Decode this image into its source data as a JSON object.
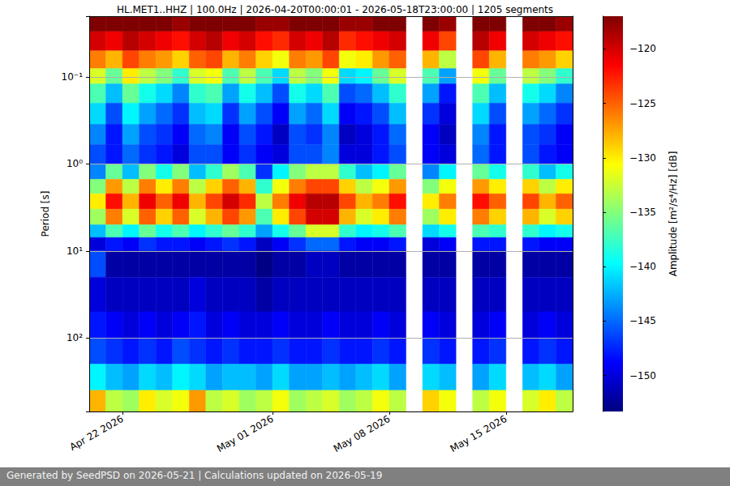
{
  "chart_data": {
    "type": "heatmap",
    "title": "HL.MET1..HHZ | 100.0Hz | 2026-04-20T00:00:01 - 2026-05-18T23:00:00 | 1205 segments",
    "ylabel": "Period [s]",
    "log": "y",
    "grid": true,
    "xlim": [
      "2026-04-20",
      "2026-05-19"
    ],
    "xticks": [
      {
        "value": "2026-04-22",
        "label": "Apr 22 2026"
      },
      {
        "value": "2026-05-01",
        "label": "May 01 2026"
      },
      {
        "value": "2026-05-08",
        "label": "May 08 2026"
      },
      {
        "value": "2026-05-15",
        "label": "May 15 2026"
      }
    ],
    "ylim": [
      0.02,
      700
    ],
    "yticks": [
      {
        "value": 0.1,
        "label": "10⁻¹"
      },
      {
        "value": 1,
        "label": "10⁰"
      },
      {
        "value": 10,
        "label": "10¹"
      },
      {
        "value": 100,
        "label": "10²"
      }
    ],
    "x_bins": [
      "2026-04-20",
      "2026-04-21",
      "2026-04-22",
      "2026-04-23",
      "2026-04-24",
      "2026-04-25",
      "2026-04-26",
      "2026-04-27",
      "2026-04-28",
      "2026-04-29",
      "2026-04-30",
      "2026-05-01",
      "2026-05-02",
      "2026-05-03",
      "2026-05-04",
      "2026-05-05",
      "2026-05-06",
      "2026-05-07",
      "2026-05-08",
      "2026-05-09",
      "2026-05-10",
      "2026-05-11",
      "2026-05-12",
      "2026-05-13",
      "2026-05-14",
      "2026-05-15",
      "2026-05-16",
      "2026-05-17",
      "2026-05-18",
      "2026-05-19"
    ],
    "y_bins": [
      0.02,
      0.03,
      0.05,
      0.08,
      0.12,
      0.2,
      0.35,
      0.6,
      1,
      1.5,
      2.2,
      3.3,
      5,
      7,
      10,
      20,
      50,
      100,
      200,
      400,
      700
    ],
    "cells": [
      [
        -117,
        -117,
        -117,
        -117,
        -117,
        -118,
        -117,
        -117,
        -117,
        -117,
        -118,
        -118,
        -117,
        -117,
        -117,
        -118,
        -118,
        -117,
        -117,
        null,
        -117,
        -118,
        null,
        -117,
        -117,
        null,
        -117,
        -117,
        -118
      ],
      [
        -120,
        -121,
        -119,
        -120,
        -121,
        -122,
        -120,
        -119,
        -121,
        -120,
        -122,
        -123,
        -120,
        -121,
        -119,
        -123,
        -122,
        -121,
        -120,
        null,
        -121,
        -124,
        null,
        -119,
        -121,
        null,
        -120,
        -121,
        -122
      ],
      [
        -126,
        -128,
        -124,
        -126,
        -127,
        -129,
        -125,
        -124,
        -128,
        -126,
        -129,
        -131,
        -126,
        -127,
        -124,
        -131,
        -130,
        -127,
        -125,
        null,
        -128,
        -133,
        null,
        -124,
        -128,
        null,
        -126,
        -127,
        -129
      ],
      [
        -132,
        -136,
        -130,
        -133,
        -135,
        -138,
        -132,
        -131,
        -137,
        -133,
        -137,
        -141,
        -133,
        -135,
        -131,
        -141,
        -140,
        -136,
        -132,
        null,
        -137,
        -143,
        null,
        -131,
        -136,
        null,
        -133,
        -135,
        -138
      ],
      [
        -137,
        -142,
        -136,
        -139,
        -141,
        -144,
        -138,
        -137,
        -143,
        -139,
        -142,
        -146,
        -139,
        -141,
        -137,
        -146,
        -145,
        -142,
        -138,
        null,
        -143,
        -148,
        null,
        -137,
        -142,
        null,
        -139,
        -141,
        -144
      ],
      [
        -141,
        -146,
        -140,
        -143,
        -145,
        -147,
        -142,
        -141,
        -147,
        -143,
        -146,
        -149,
        -143,
        -145,
        -141,
        -149,
        -148,
        -146,
        -142,
        null,
        -147,
        -150,
        null,
        -141,
        -146,
        null,
        -143,
        -145,
        -147
      ],
      [
        -144,
        -148,
        -143,
        -146,
        -147,
        -149,
        -145,
        -144,
        -149,
        -146,
        -148,
        -151,
        -146,
        -147,
        -144,
        -151,
        -150,
        -148,
        -145,
        null,
        -149,
        -151,
        null,
        -144,
        -148,
        null,
        -146,
        -147,
        -149
      ],
      [
        -146,
        -148,
        -145,
        -147,
        -148,
        -150,
        -146,
        -146,
        -149,
        -147,
        -149,
        -150,
        -146,
        -146,
        -144,
        -150,
        -150,
        -148,
        -146,
        null,
        -149,
        -150,
        null,
        -145,
        -148,
        null,
        -146,
        -148,
        -149
      ],
      [
        -144,
        -136,
        -142,
        -135,
        -139,
        -135,
        -142,
        -138,
        -134,
        -137,
        -147,
        -140,
        -135,
        -133,
        -133,
        -138,
        -142,
        -140,
        -136,
        null,
        -144,
        -140,
        null,
        -136,
        -139,
        null,
        -138,
        -142,
        -139
      ],
      [
        -135,
        -127,
        -133,
        -126,
        -130,
        -126,
        -133,
        -129,
        -125,
        -128,
        -138,
        -131,
        -126,
        -124,
        -124,
        -129,
        -133,
        -131,
        -127,
        null,
        -135,
        -131,
        null,
        -127,
        -130,
        null,
        -129,
        -133,
        -130
      ],
      [
        -130,
        -122,
        -128,
        -121,
        -125,
        -121,
        -128,
        -124,
        -120,
        -123,
        -133,
        -126,
        -121,
        -119,
        -119,
        -124,
        -128,
        -126,
        -122,
        null,
        -130,
        -126,
        null,
        -122,
        -125,
        null,
        -124,
        -128,
        -125
      ],
      [
        -134,
        -126,
        -132,
        -125,
        -129,
        -125,
        -132,
        -128,
        -124,
        -127,
        -137,
        -130,
        -124,
        -120,
        -120,
        -128,
        -132,
        -130,
        -126,
        null,
        -134,
        -130,
        null,
        -126,
        -129,
        null,
        -128,
        -132,
        -129
      ],
      [
        -142,
        -137,
        -140,
        -136,
        -139,
        -137,
        -140,
        -138,
        -136,
        -138,
        -143,
        -139,
        -136,
        -132,
        -132,
        -138,
        -140,
        -139,
        -137,
        null,
        -141,
        -139,
        null,
        -137,
        -138,
        null,
        -138,
        -140,
        -139
      ],
      [
        -150,
        -148,
        -149,
        -147,
        -148,
        -148,
        -149,
        -148,
        -147,
        -148,
        -151,
        -149,
        -147,
        -145,
        -145,
        -148,
        -149,
        -149,
        -148,
        null,
        -150,
        -149,
        null,
        -148,
        -148,
        null,
        -148,
        -149,
        -149
      ],
      [
        -146,
        -152,
        -152,
        -152,
        -152,
        -152,
        -152,
        -152,
        -152,
        -152,
        -153,
        -152,
        -152,
        -151,
        -151,
        -152,
        -152,
        -152,
        -152,
        null,
        -152,
        -152,
        null,
        -152,
        -152,
        null,
        -152,
        -152,
        -152
      ],
      [
        -150,
        -151,
        -151,
        -151,
        -151,
        -151,
        -150,
        -151,
        -151,
        -151,
        -152,
        -151,
        -151,
        -151,
        -151,
        -151,
        -151,
        -151,
        -151,
        null,
        -151,
        -151,
        null,
        -151,
        -151,
        null,
        -151,
        -151,
        -151
      ],
      [
        -148,
        -149,
        -150,
        -149,
        -150,
        -149,
        -148,
        -150,
        -149,
        -150,
        -150,
        -149,
        -150,
        -150,
        -149,
        -150,
        -150,
        -149,
        -150,
        null,
        -149,
        -150,
        null,
        -150,
        -149,
        null,
        -150,
        -149,
        -150
      ],
      [
        -146,
        -147,
        -148,
        -147,
        -148,
        -146,
        -147,
        -148,
        -147,
        -148,
        -148,
        -147,
        -148,
        -148,
        -147,
        -148,
        -148,
        -147,
        -148,
        null,
        -147,
        -148,
        null,
        -148,
        -147,
        null,
        -148,
        -147,
        -148
      ],
      [
        -140,
        -142,
        -143,
        -141,
        -142,
        -140,
        -141,
        -143,
        -142,
        -142,
        -143,
        -141,
        -143,
        -143,
        -142,
        -143,
        -142,
        -141,
        -143,
        null,
        -141,
        -142,
        null,
        -143,
        -141,
        null,
        -142,
        -141,
        -143
      ],
      [
        -128,
        -133,
        -134,
        -130,
        -132,
        -131,
        -127,
        -133,
        -132,
        -134,
        -133,
        -131,
        -134,
        -133,
        -132,
        -134,
        -133,
        -131,
        -133,
        null,
        -129,
        -131,
        null,
        -133,
        -131,
        null,
        -132,
        -130,
        -133
      ]
    ],
    "colorbar_label": "Amplitude [m²/s⁴/Hz] [dB]",
    "clim": [
      -153.3,
      -117
    ],
    "cticks": [
      {
        "value": -150,
        "label": "−150"
      },
      {
        "value": -145,
        "label": "−145"
      },
      {
        "value": -140,
        "label": "−140"
      },
      {
        "value": -135,
        "label": "−135"
      },
      {
        "value": -130,
        "label": "−130"
      },
      {
        "value": -125,
        "label": "−125"
      },
      {
        "value": -120,
        "label": "−120"
      }
    ],
    "footer": "Generated by SeedPSD on 2026-05-21 | Calculations updated on 2026-05-19"
  }
}
